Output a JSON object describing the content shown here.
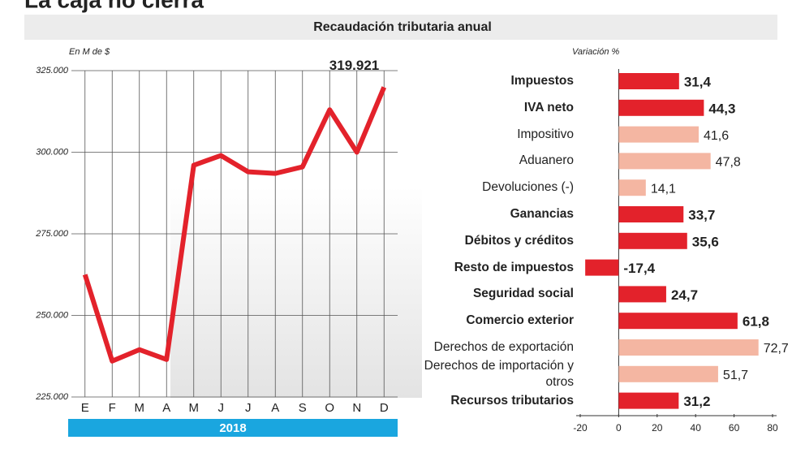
{
  "header": {
    "title": "La caja no cierra",
    "subtitle": "Recaudación tributaria anual"
  },
  "chart_data": [
    {
      "type": "line",
      "y_label": "En M de $",
      "x_band_label": "2018",
      "color": "#e3222b",
      "grid": true,
      "categories": [
        "E",
        "F",
        "M",
        "A",
        "M",
        "J",
        "J",
        "A",
        "S",
        "O",
        "N",
        "D"
      ],
      "values": [
        262500,
        236000,
        239500,
        236500,
        296000,
        299000,
        294000,
        293500,
        295500,
        313000,
        300000,
        319921
      ],
      "value_labels": [
        null,
        null,
        null,
        null,
        null,
        null,
        null,
        null,
        null,
        null,
        null,
        "319.921"
      ],
      "ylim": [
        225000,
        325000
      ],
      "yticks": [
        {
          "value": 225000,
          "label": "225.000"
        },
        {
          "value": 250000,
          "label": "250.000"
        },
        {
          "value": 275000,
          "label": "275.000"
        },
        {
          "value": 300000,
          "label": "300.000"
        },
        {
          "value": 325000,
          "label": "325.000"
        }
      ]
    },
    {
      "type": "hbar",
      "x_label": "Variación %",
      "categories": [
        "Impuestos",
        "IVA neto",
        "Impositivo",
        "Aduanero",
        "Devoluciones (-)",
        "Ganancias",
        "Débitos y créditos",
        "Resto de impuestos",
        "Seguridad social",
        "Comercio exterior",
        "Derechos de exportación",
        "Derechos de importación y otros",
        "Recursos tributarios"
      ],
      "values": [
        31.4,
        44.3,
        41.6,
        47.8,
        14.1,
        33.7,
        35.6,
        -17.4,
        24.7,
        61.8,
        72.7,
        51.7,
        31.2
      ],
      "value_labels": [
        "31,4",
        "44,3",
        "41,6",
        "47,8",
        "14,1",
        "33,7",
        "35,6",
        "-17,4",
        "24,7",
        "61,8",
        "72,7",
        "51,7",
        "31,2"
      ],
      "colors": [
        "#e3222b",
        "#e3222b",
        "#f4b6a2",
        "#f4b6a2",
        "#f4b6a2",
        "#e3222b",
        "#e3222b",
        "#e3222b",
        "#e3222b",
        "#e3222b",
        "#f4b6a2",
        "#f4b6a2",
        "#e3222b"
      ],
      "emphasis": [
        true,
        true,
        false,
        false,
        false,
        true,
        true,
        true,
        true,
        true,
        false,
        false,
        true
      ],
      "xlim": [
        -20,
        80
      ],
      "xticks": [
        -20,
        0,
        20,
        40,
        60,
        80
      ]
    }
  ]
}
